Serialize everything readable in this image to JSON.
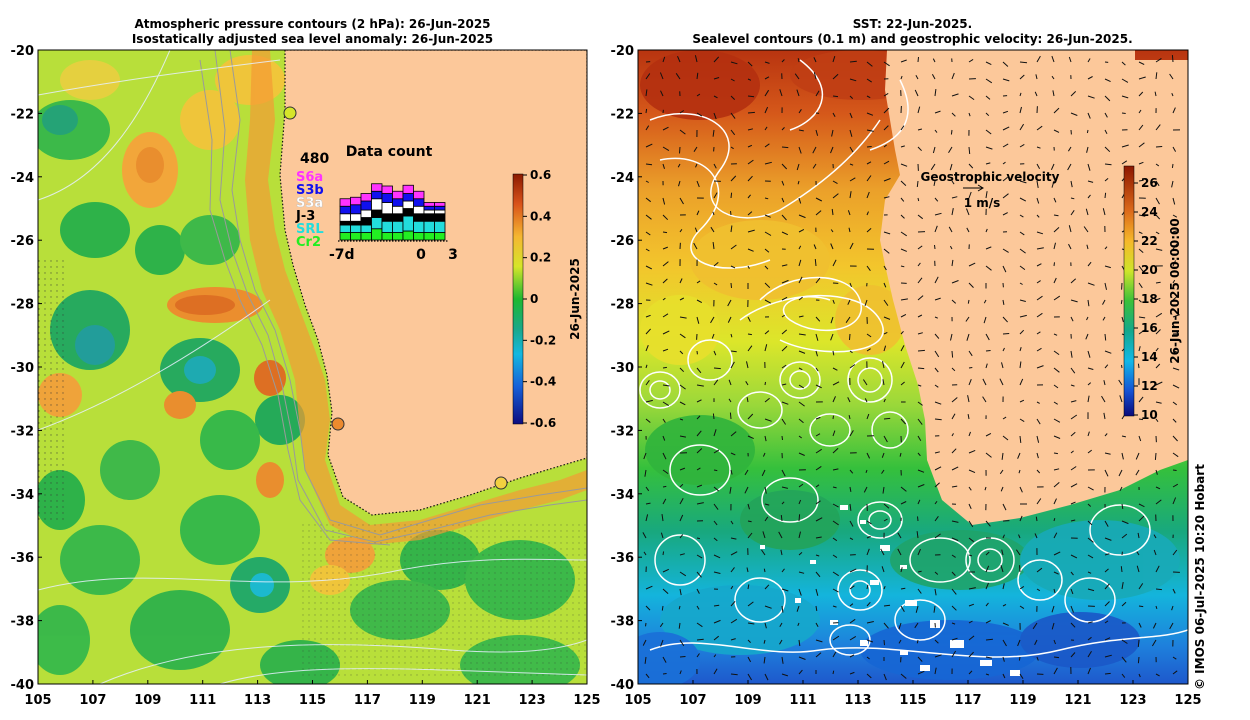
{
  "left_panel": {
    "title_line1": "Atmospheric pressure contours (2 hPa): 26-Jun-2025",
    "title_line2": "Isostatically adjusted sea level anomaly: 26-Jun-2025",
    "y_ticks": [
      "-20",
      "-22",
      "-24",
      "-26",
      "-28",
      "-30",
      "-32",
      "-34",
      "-36",
      "-38",
      "-40"
    ],
    "x_ticks": [
      "105",
      "107",
      "109",
      "111",
      "113",
      "115",
      "117",
      "119",
      "121",
      "123",
      "125"
    ],
    "colorbar": {
      "ticks": [
        "0.6",
        "0.4",
        "0.2",
        "0",
        "-0.2",
        "-0.4",
        "-0.6"
      ],
      "date_label": "26-Jun-2025",
      "range": [
        -0.6,
        0.6
      ]
    },
    "data_count": {
      "title": "Data count",
      "max_label": "480",
      "x_start": "-7d",
      "x_zero": "0",
      "x_end": "3",
      "satellites": [
        {
          "name": "S6a",
          "color": "#ff33ff"
        },
        {
          "name": "S3b",
          "color": "#1010ee"
        },
        {
          "name": "S3a",
          "color": "#ffffff"
        },
        {
          "name": "J-3",
          "color": "#000000"
        },
        {
          "name": "SRL",
          "color": "#22dddd"
        },
        {
          "name": "Cr2",
          "color": "#22ee22"
        }
      ],
      "bars": [
        [
          1,
          1,
          1,
          0.5,
          1,
          1
        ],
        [
          1,
          1.2,
          1,
          0.5,
          1,
          1
        ],
        [
          1,
          1.2,
          1,
          1,
          1,
          1
        ],
        [
          1,
          1,
          1.5,
          1,
          1.5,
          1.5
        ],
        [
          1,
          1.2,
          1.5,
          1,
          1.5,
          1
        ],
        [
          1,
          1,
          1,
          1,
          1.5,
          1
        ],
        [
          1.1,
          1,
          1,
          1,
          2,
          1.2
        ],
        [
          1,
          1,
          1,
          1,
          1.5,
          1
        ],
        [
          0.5,
          0.5,
          0.5,
          1,
          1.5,
          1
        ],
        [
          0.5,
          0.5,
          0.5,
          1,
          1.5,
          1
        ]
      ]
    }
  },
  "right_panel": {
    "title_line1": "SST: 22-Jun-2025.",
    "title_line2": "Sealevel contours (0.1 m) and geostrophic velocity: 26-Jun-2025.",
    "y_ticks": [
      "-20",
      "-22",
      "-24",
      "-26",
      "-28",
      "-30",
      "-32",
      "-34",
      "-36",
      "-38",
      "-40"
    ],
    "x_ticks": [
      "105",
      "107",
      "109",
      "111",
      "113",
      "115",
      "117",
      "119",
      "121",
      "123",
      "125"
    ],
    "colorbar": {
      "ticks": [
        "26",
        "24",
        "22",
        "20",
        "18",
        "16",
        "14",
        "12",
        "10"
      ],
      "date_label": "26-Jun-2025 00:00:00",
      "range": [
        10,
        27.5
      ]
    },
    "velocity_legend": {
      "title": "Geostrophic velocity",
      "scale_label": "1 m/s"
    }
  },
  "credit": "© IMOS 06-Jul-2025 10:20 Hobart",
  "colors": {
    "land": "#fcc89a",
    "coast_dots": "#111111",
    "contour": "#ffffff",
    "bathymetry": "#999999"
  }
}
